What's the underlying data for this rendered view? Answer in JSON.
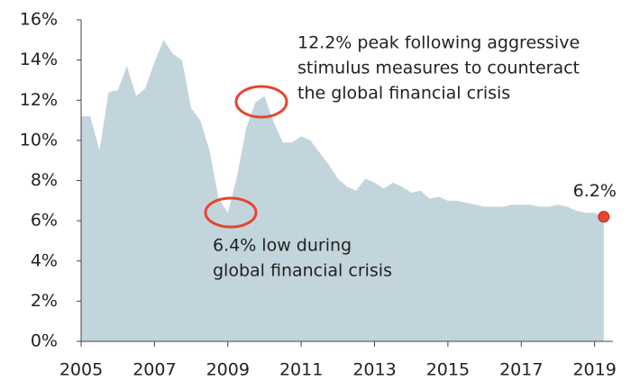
{
  "chart_data": {
    "type": "area",
    "x": [
      2005,
      2005.25,
      2005.5,
      2005.75,
      2006,
      2006.25,
      2006.5,
      2006.75,
      2007,
      2007.25,
      2007.5,
      2007.75,
      2008,
      2008.25,
      2008.5,
      2008.75,
      2009,
      2009.25,
      2009.5,
      2009.75,
      2010,
      2010.25,
      2010.5,
      2010.75,
      2011,
      2011.25,
      2011.5,
      2011.75,
      2012,
      2012.25,
      2012.5,
      2012.75,
      2013,
      2013.25,
      2013.5,
      2013.75,
      2014,
      2014.25,
      2014.5,
      2014.75,
      2015,
      2015.25,
      2015.5,
      2015.75,
      2016,
      2016.25,
      2016.5,
      2016.75,
      2017,
      2017.25,
      2017.5,
      2017.75,
      2018,
      2018.25,
      2018.5,
      2018.75,
      2019,
      2019.25
    ],
    "values": [
      11.2,
      11.2,
      9.5,
      12.4,
      12.5,
      13.7,
      12.2,
      12.6,
      13.9,
      15.0,
      14.3,
      14.0,
      11.6,
      11.0,
      9.5,
      7.1,
      6.4,
      8.2,
      10.6,
      11.9,
      12.2,
      10.9,
      9.9,
      9.9,
      10.2,
      10.0,
      9.4,
      8.8,
      8.1,
      7.7,
      7.5,
      8.1,
      7.9,
      7.6,
      7.9,
      7.7,
      7.4,
      7.5,
      7.1,
      7.2,
      7.0,
      7.0,
      6.9,
      6.8,
      6.7,
      6.7,
      6.7,
      6.8,
      6.8,
      6.8,
      6.7,
      6.7,
      6.8,
      6.7,
      6.5,
      6.4,
      6.4,
      6.2
    ],
    "value_labels": [
      null,
      null,
      null,
      null,
      null,
      null,
      null,
      null,
      null,
      null,
      null,
      null,
      null,
      null,
      null,
      null,
      null,
      null,
      null,
      null,
      null,
      null,
      null,
      null,
      null,
      null,
      null,
      null,
      null,
      null,
      null,
      null,
      null,
      null,
      null,
      null,
      null,
      null,
      null,
      null,
      null,
      null,
      null,
      null,
      null,
      null,
      null,
      null,
      null,
      null,
      null,
      null,
      null,
      null,
      null,
      null,
      null,
      "6.2%"
    ],
    "color": "#c3d5dc",
    "marker_color": "#e8452f",
    "xlim": [
      2005,
      2019.5
    ],
    "xticks": [
      2005,
      2007,
      2009,
      2011,
      2013,
      2015,
      2017,
      2019
    ],
    "ylim": [
      0,
      16
    ],
    "yticks": [
      {
        "value": 0,
        "label": "0%"
      },
      {
        "value": 2,
        "label": "2%"
      },
      {
        "value": 4,
        "label": "4%"
      },
      {
        "value": 6,
        "label": "6%"
      },
      {
        "value": 8,
        "label": "8%"
      },
      {
        "value": 10,
        "label": "10%"
      },
      {
        "value": 12,
        "label": "12%"
      },
      {
        "value": 14,
        "label": "14%"
      },
      {
        "value": 16,
        "label": "16%"
      }
    ],
    "annotations": [
      {
        "lines": [
          "12.2% peak following aggressive",
          "stimulus measures to counteract",
          "the global financial crisis"
        ]
      },
      {
        "lines": [
          "6.4% low during",
          "global financial crisis"
        ]
      }
    ]
  }
}
